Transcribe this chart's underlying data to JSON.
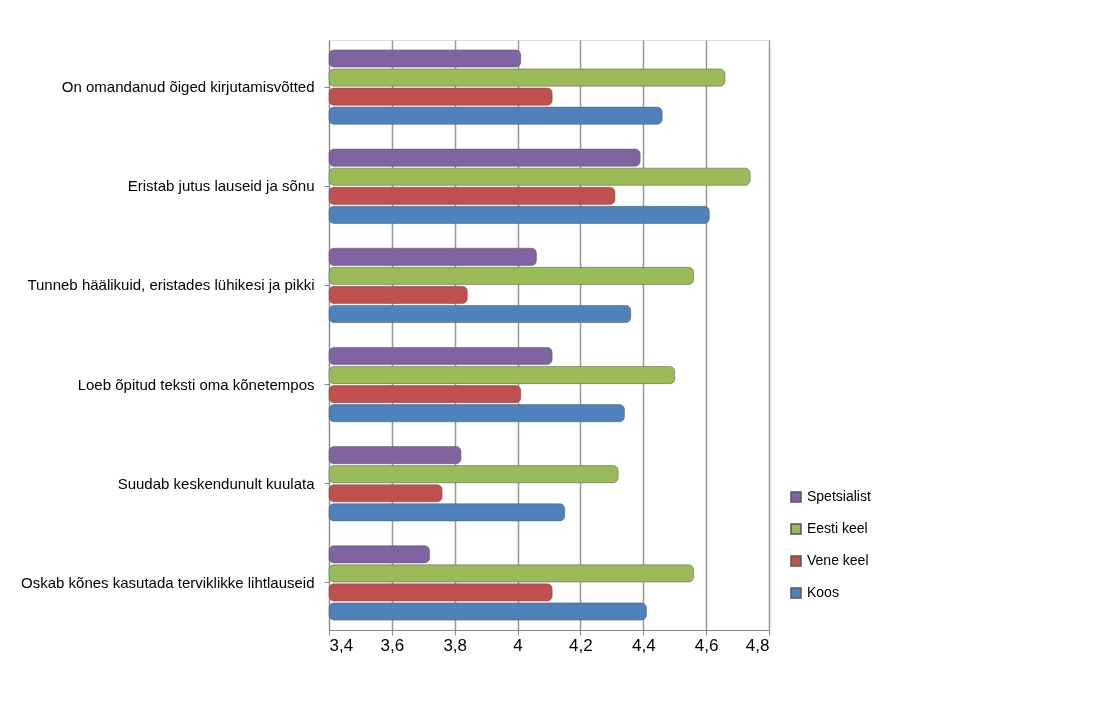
{
  "chart_data": {
    "type": "bar",
    "orientation": "horizontal",
    "categories": [
      "On omandanud õiged kirjutamisvõtted",
      "Eristab jutus lauseid ja  sõnu",
      "Tunneb häälikuid, eristades lühikesi ja pikki",
      "Loeb õpitud teksti oma kõnetempos",
      "Suudab keskendunult kuulata",
      "Oskab kõnes kasutada terviklikke lihtlauseid"
    ],
    "series": [
      {
        "name": "Spetsialist",
        "color": "#8064a2",
        "values": [
          4.01,
          4.39,
          4.06,
          4.11,
          3.82,
          3.72
        ]
      },
      {
        "name": "Eesti keel",
        "color": "#9bbb59",
        "values": [
          4.66,
          4.74,
          4.56,
          4.5,
          4.32,
          4.56
        ]
      },
      {
        "name": "Vene keel",
        "color": "#c0504d",
        "values": [
          4.11,
          4.31,
          3.84,
          4.01,
          3.76,
          4.11
        ]
      },
      {
        "name": "Koos",
        "color": "#4f81bd",
        "values": [
          4.46,
          4.61,
          4.36,
          4.34,
          4.15,
          4.41
        ]
      }
    ],
    "xlim": [
      3.4,
      4.8
    ],
    "xticks": [
      {
        "value": 3.4,
        "label": "3,4"
      },
      {
        "value": 3.6,
        "label": "3,6"
      },
      {
        "value": 3.8,
        "label": "3,8"
      },
      4,
      {
        "value": 4.2,
        "label": "4,2"
      },
      {
        "value": 4.4,
        "label": "4,4"
      },
      {
        "value": 4.6,
        "label": "4,6"
      },
      {
        "value": 4.8,
        "label": "4,8"
      }
    ],
    "grid": "x",
    "legend": "bottom right"
  }
}
